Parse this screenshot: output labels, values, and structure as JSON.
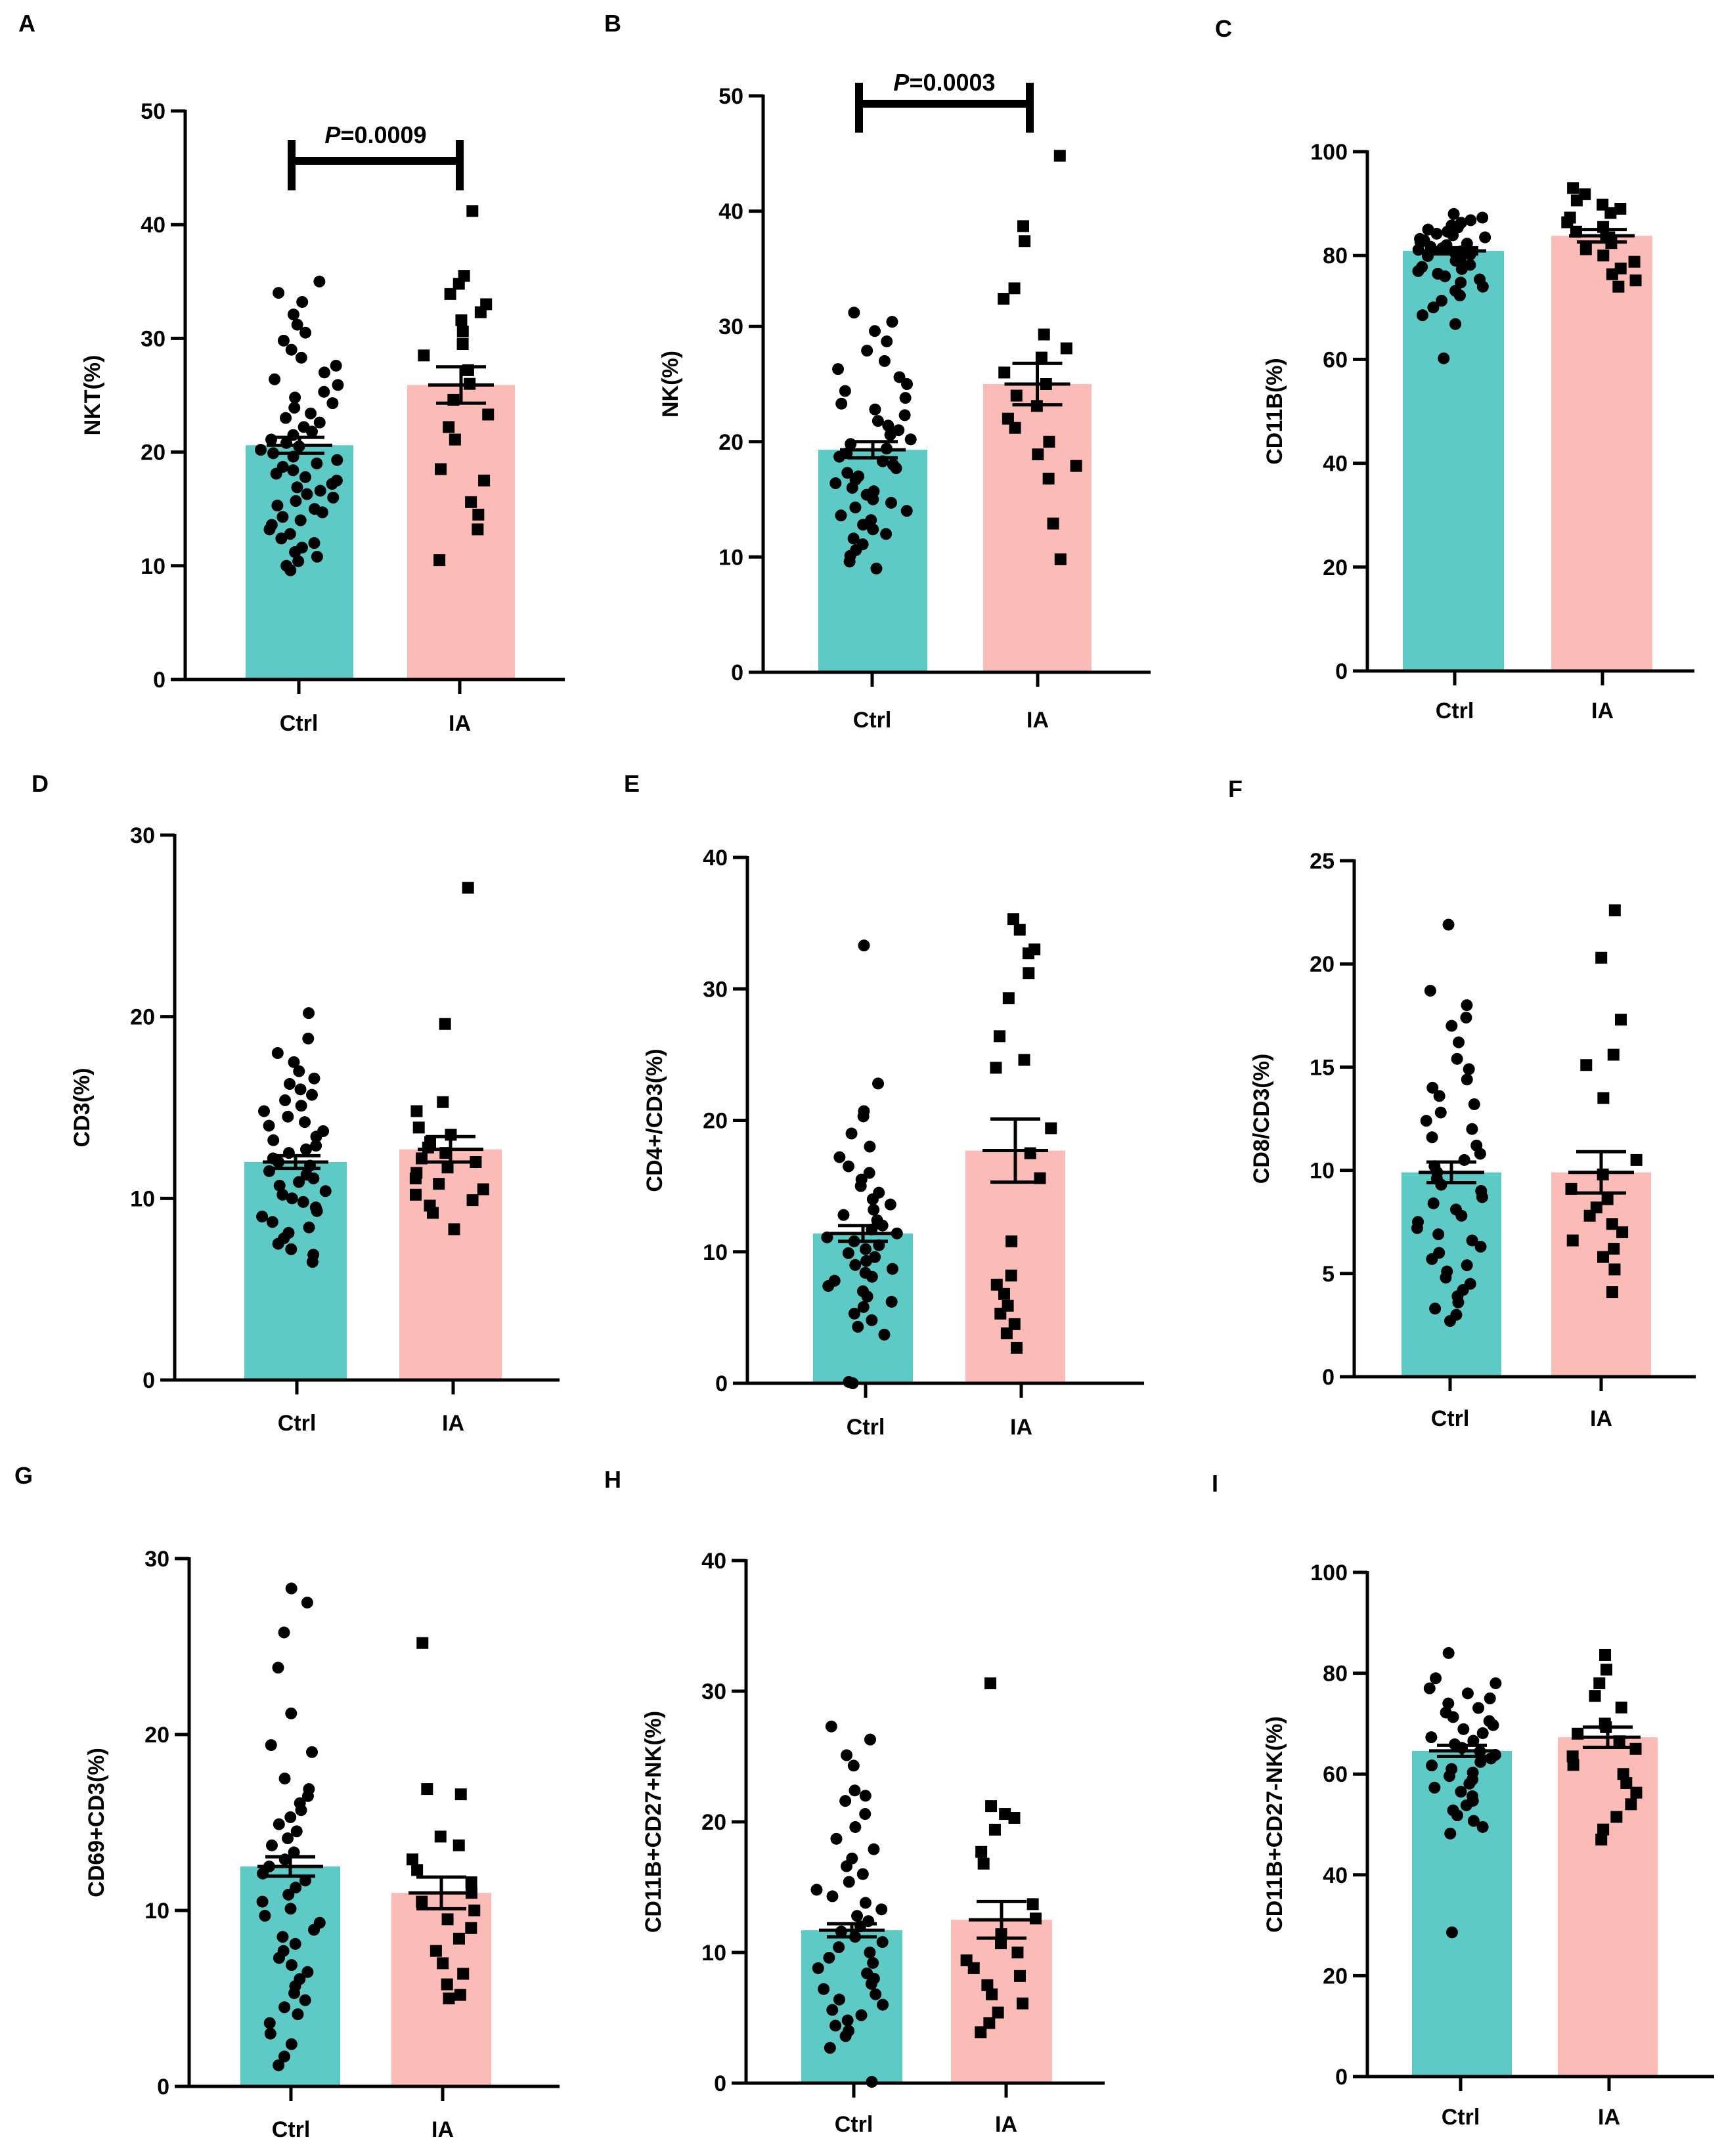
{
  "figure": {
    "description_free": true,
    "colors": {
      "ctrl": "#5ecac5",
      "ia": "#fbbcb8",
      "ink": "#000000"
    },
    "chart_data": [
      {
        "panel": "A",
        "type": "bar",
        "categories": [
          "Ctrl",
          "IA"
        ],
        "values": [
          20.6,
          25.9
        ],
        "sem": [
          0.7,
          1.6
        ],
        "ylabel": "NKT(%)",
        "ylim": [
          0,
          50
        ],
        "yticks": [
          0,
          10,
          20,
          30,
          40,
          50
        ],
        "significance": {
          "label_italic": "P",
          "label_rest": "=0.0009"
        },
        "points": [
          [
            35.0,
            34.0,
            33.2,
            32.1,
            31.2,
            30.5,
            29.8,
            29.0,
            28.3,
            27.6,
            27.0,
            26.4,
            25.9,
            25.3,
            24.8,
            24.3,
            23.9,
            23.4,
            23.0,
            22.6,
            22.2,
            21.8,
            21.5,
            21.1,
            20.8,
            20.5,
            20.2,
            19.9,
            19.6,
            19.3,
            19.0,
            18.7,
            18.4,
            18.1,
            17.8,
            17.5,
            17.2,
            16.9,
            16.6,
            16.3,
            16.0,
            15.7,
            15.3,
            15.0,
            14.7,
            14.3,
            14.0,
            13.6,
            13.2,
            12.8,
            12.4,
            12.0,
            11.6,
            11.2,
            10.8,
            10.4,
            10.0,
            9.6
          ],
          [
            41.2,
            35.5,
            34.8,
            33.9,
            33.0,
            32.3,
            31.6,
            30.6,
            29.5,
            28.5,
            27.2,
            26.0,
            24.6,
            23.3,
            22.2,
            21.1,
            18.5,
            17.5,
            15.6,
            14.5,
            13.2,
            10.5
          ]
        ]
      },
      {
        "panel": "B",
        "type": "bar",
        "categories": [
          "Ctrl",
          "IA"
        ],
        "values": [
          19.3,
          25.0
        ],
        "sem": [
          0.7,
          1.8
        ],
        "ylabel": "NK(%)",
        "ylim": [
          0,
          50
        ],
        "yticks": [
          0,
          10,
          20,
          30,
          40,
          50
        ],
        "significance": {
          "label_italic": "P",
          "label_rest": "=0.0003"
        },
        "points": [
          [
            31.2,
            30.4,
            29.6,
            28.7,
            27.9,
            27.0,
            26.3,
            25.6,
            25.0,
            24.4,
            23.8,
            23.3,
            22.8,
            22.3,
            21.8,
            21.4,
            21.0,
            20.6,
            20.2,
            19.8,
            19.4,
            19.0,
            18.7,
            18.3,
            18.0,
            17.7,
            17.3,
            17.0,
            16.7,
            16.4,
            16.0,
            15.7,
            15.4,
            15.0,
            14.7,
            14.3,
            14.0,
            13.6,
            13.2,
            12.8,
            12.4,
            12.0,
            11.6,
            11.1,
            10.6,
            10.1,
            9.6,
            9.0
          ],
          [
            44.8,
            38.7,
            37.4,
            33.3,
            32.4,
            29.3,
            28.1,
            27.3,
            26.0,
            25.0,
            24.0,
            23.1,
            22.0,
            21.2,
            20.0,
            18.9,
            17.9,
            16.8,
            12.9,
            9.8
          ]
        ]
      },
      {
        "panel": "C",
        "type": "bar",
        "categories": [
          "Ctrl",
          "IA"
        ],
        "values": [
          80.9,
          83.8
        ],
        "sem": [
          0.6,
          1.2
        ],
        "ylabel": "CD11B(%)",
        "ylim": [
          0,
          100
        ],
        "yticks": [
          0,
          20,
          40,
          60,
          80,
          100
        ],
        "points": [
          [
            88.0,
            87.3,
            86.8,
            86.3,
            85.8,
            85.4,
            85.0,
            84.6,
            84.2,
            83.9,
            83.5,
            83.2,
            82.9,
            82.6,
            82.3,
            82.0,
            81.7,
            81.4,
            81.1,
            80.8,
            80.5,
            80.2,
            79.9,
            79.6,
            79.3,
            79.0,
            78.6,
            78.2,
            77.8,
            77.4,
            77.0,
            76.5,
            76.0,
            75.4,
            74.8,
            74.0,
            73.2,
            72.3,
            71.3,
            70.0,
            68.5,
            66.8,
            60.2
          ],
          [
            93.0,
            91.8,
            90.6,
            89.8,
            89.0,
            88.2,
            87.3,
            86.4,
            85.5,
            84.6,
            83.5,
            82.4,
            81.2,
            80.0,
            78.8,
            77.5,
            76.4,
            75.2,
            74.0
          ]
        ]
      },
      {
        "panel": "D",
        "type": "bar",
        "categories": [
          "Ctrl",
          "IA"
        ],
        "values": [
          12.0,
          12.7
        ],
        "sem": [
          0.35,
          0.7
        ],
        "ylabel": "CD3(%)",
        "ylim": [
          0,
          30
        ],
        "yticks": [
          0,
          10,
          20,
          30
        ],
        "points": [
          [
            20.2,
            18.8,
            18.0,
            17.5,
            17.0,
            16.6,
            16.3,
            16.0,
            15.7,
            15.4,
            15.1,
            14.8,
            14.5,
            14.2,
            14.0,
            13.7,
            13.4,
            13.2,
            12.9,
            12.7,
            12.5,
            12.2,
            12.0,
            11.8,
            11.5,
            11.3,
            11.1,
            10.9,
            10.7,
            10.4,
            10.2,
            10.0,
            9.8,
            9.5,
            9.3,
            9.0,
            8.7,
            8.4,
            8.1,
            7.8,
            7.5,
            7.2,
            6.9,
            6.5
          ],
          [
            27.1,
            19.6,
            15.3,
            14.8,
            13.9,
            13.5,
            13.1,
            12.8,
            12.5,
            12.2,
            12.0,
            11.7,
            11.4,
            11.1,
            10.8,
            10.5,
            10.2,
            9.9,
            9.6,
            9.2,
            8.3
          ]
        ]
      },
      {
        "panel": "E",
        "type": "bar",
        "categories": [
          "Ctrl",
          "IA"
        ],
        "values": [
          11.4,
          17.7
        ],
        "sem": [
          0.6,
          2.4
        ],
        "ylabel": "CD4+/CD3(%)",
        "ylim": [
          0,
          40
        ],
        "yticks": [
          0,
          10,
          20,
          30,
          40
        ],
        "points": [
          [
            33.3,
            22.8,
            20.7,
            20.3,
            19.0,
            18.0,
            17.2,
            16.5,
            16.0,
            15.5,
            15.0,
            14.5,
            14.0,
            13.6,
            13.2,
            12.8,
            12.4,
            12.0,
            11.7,
            11.4,
            11.1,
            10.8,
            10.5,
            10.2,
            9.9,
            9.6,
            9.3,
            9.0,
            8.7,
            8.4,
            8.1,
            7.8,
            7.4,
            7.0,
            6.6,
            6.2,
            5.8,
            5.3,
            4.8,
            4.3,
            3.7,
            0.1,
            0.0
          ],
          [
            35.3,
            34.5,
            33.0,
            32.7,
            31.2,
            29.3,
            26.4,
            24.6,
            24.0,
            19.4,
            17.5,
            15.6,
            10.8,
            8.2,
            7.5,
            6.8,
            5.9,
            5.3,
            4.5,
            3.8,
            2.7
          ]
        ]
      },
      {
        "panel": "F",
        "type": "bar",
        "categories": [
          "Ctrl",
          "IA"
        ],
        "values": [
          9.9,
          9.9
        ],
        "sem": [
          0.5,
          1.0
        ],
        "ylabel": "CD8/CD3(%)",
        "ylim": [
          0,
          25
        ],
        "yticks": [
          0,
          5,
          10,
          15,
          20,
          25
        ],
        "points": [
          [
            21.9,
            18.7,
            18.0,
            17.4,
            17.0,
            16.2,
            15.4,
            14.9,
            14.4,
            14.0,
            13.6,
            13.2,
            12.8,
            12.4,
            12.0,
            11.6,
            11.2,
            10.8,
            10.5,
            10.2,
            9.9,
            9.6,
            9.3,
            9.0,
            8.7,
            8.4,
            8.1,
            7.8,
            7.5,
            7.2,
            6.9,
            6.6,
            6.3,
            6.0,
            5.7,
            5.4,
            5.1,
            4.8,
            4.5,
            4.2,
            3.9,
            3.6,
            3.3,
            3.0,
            2.7
          ],
          [
            22.6,
            20.3,
            17.3,
            15.6,
            15.1,
            13.5,
            10.5,
            9.8,
            9.1,
            8.6,
            8.2,
            7.8,
            7.4,
            7.0,
            6.6,
            6.2,
            5.8,
            5.2,
            4.1
          ]
        ]
      },
      {
        "panel": "G",
        "type": "bar",
        "categories": [
          "Ctrl",
          "IA"
        ],
        "values": [
          12.5,
          11.0
        ],
        "sem": [
          0.55,
          0.9
        ],
        "ylabel": "CD69+CD3(%)",
        "ylim": [
          0,
          30
        ],
        "yticks": [
          0,
          10,
          20,
          30
        ],
        "points": [
          [
            28.3,
            27.5,
            25.8,
            23.8,
            21.2,
            19.4,
            19.0,
            17.5,
            16.9,
            16.5,
            16.1,
            15.7,
            15.3,
            14.9,
            14.5,
            14.1,
            13.7,
            13.3,
            12.9,
            12.5,
            12.1,
            11.7,
            11.3,
            10.9,
            10.5,
            10.1,
            9.7,
            9.3,
            8.9,
            8.5,
            8.1,
            7.7,
            7.3,
            6.9,
            6.5,
            6.1,
            5.7,
            5.3,
            4.9,
            4.5,
            4.1,
            3.6,
            3.0,
            2.4,
            1.7,
            1.2
          ],
          [
            25.2,
            16.9,
            16.6,
            14.2,
            13.7,
            12.9,
            12.3,
            11.6,
            11.0,
            10.5,
            10.0,
            9.5,
            9.0,
            8.4,
            7.7,
            7.0,
            6.4,
            5.8,
            5.2,
            5.0
          ]
        ]
      },
      {
        "panel": "H",
        "type": "bar",
        "categories": [
          "Ctrl",
          "IA"
        ],
        "values": [
          11.7,
          12.5
        ],
        "sem": [
          0.5,
          1.4
        ],
        "ylabel": "CD11B+CD27+NK(%)",
        "ylim": [
          0,
          40
        ],
        "yticks": [
          0,
          10,
          20,
          30,
          40
        ],
        "points": [
          [
            27.3,
            26.3,
            25.1,
            24.3,
            22.4,
            22.0,
            21.6,
            20.6,
            19.6,
            18.7,
            17.9,
            17.2,
            16.6,
            16.0,
            15.4,
            14.8,
            14.3,
            13.8,
            13.3,
            12.8,
            12.4,
            12.0,
            11.6,
            11.2,
            10.8,
            10.4,
            10.0,
            9.6,
            9.2,
            8.8,
            8.4,
            8.0,
            7.6,
            7.2,
            6.8,
            6.4,
            6.0,
            5.6,
            5.2,
            4.8,
            4.4,
            4.0,
            3.6,
            2.7,
            0.1
          ],
          [
            30.6,
            21.2,
            20.6,
            20.3,
            19.4,
            17.7,
            16.8,
            13.7,
            12.6,
            11.4,
            10.7,
            10.0,
            9.4,
            8.8,
            8.2,
            7.5,
            6.8,
            6.1,
            5.4,
            4.6,
            3.9
          ]
        ]
      },
      {
        "panel": "I",
        "type": "bar",
        "categories": [
          "Ctrl",
          "IA"
        ],
        "values": [
          64.6,
          67.3
        ],
        "sem": [
          1.1,
          2.0
        ],
        "ylabel": "CD11B+CD27-NK(%)",
        "ylim": [
          0,
          100
        ],
        "yticks": [
          0,
          20,
          40,
          60,
          80,
          100
        ],
        "points": [
          [
            84.0,
            79.0,
            78.0,
            77.0,
            76.0,
            75.0,
            74.0,
            73.1,
            72.2,
            71.3,
            70.5,
            69.7,
            68.9,
            68.1,
            67.3,
            66.6,
            65.9,
            65.2,
            64.5,
            63.8,
            63.1,
            62.4,
            61.7,
            61.0,
            60.3,
            59.6,
            58.9,
            58.1,
            57.3,
            56.5,
            55.6,
            54.7,
            53.8,
            52.8,
            51.8,
            50.7,
            49.5,
            48.2,
            28.6
          ],
          [
            83.6,
            80.7,
            78.0,
            75.5,
            73.2,
            70.0,
            69.3,
            68.0,
            66.5,
            65.0,
            63.5,
            61.8,
            60.0,
            58.2,
            56.3,
            54.0,
            51.5,
            49.0,
            47.0
          ]
        ]
      }
    ]
  }
}
